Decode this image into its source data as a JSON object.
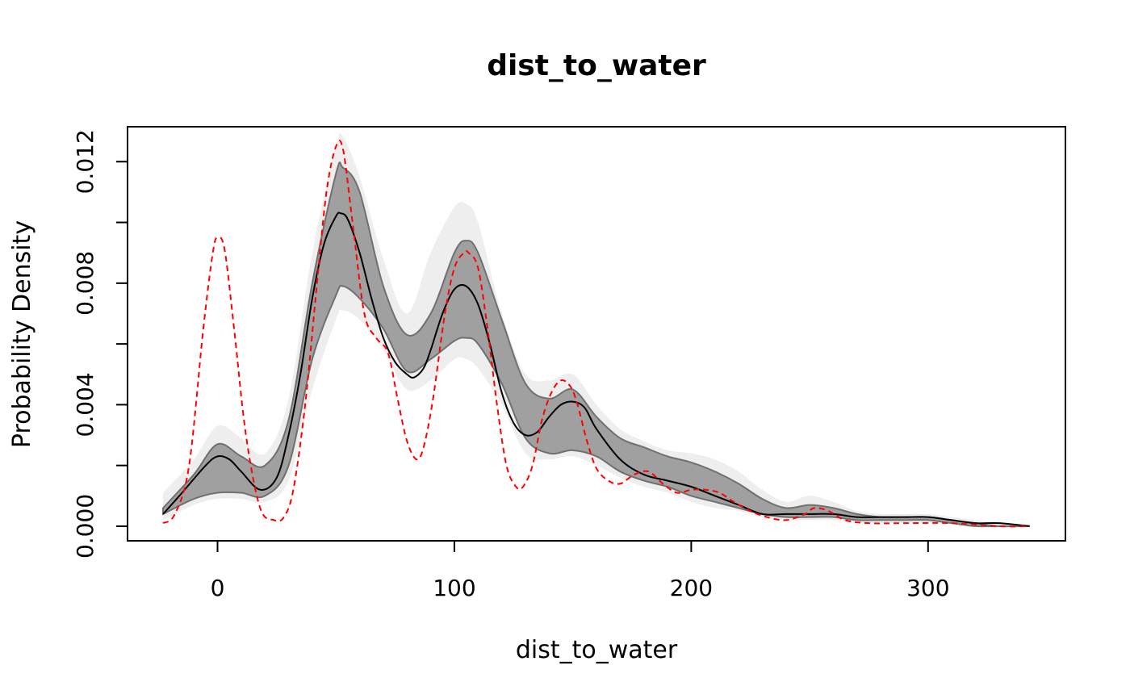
{
  "chart_data": {
    "type": "line",
    "title": "dist_to_water",
    "xlabel": "dist_to_water",
    "ylabel": "Probability Density",
    "xlim": [
      -38,
      358
    ],
    "ylim": [
      -0.00048,
      0.01315
    ],
    "x_ticks": [
      0,
      100,
      200,
      300
    ],
    "x_tick_labels": [
      "0",
      "100",
      "200",
      "300"
    ],
    "y_ticks": [
      0.0,
      0.002,
      0.004,
      0.006,
      0.008,
      0.01,
      0.012
    ],
    "y_tick_labels": [
      "0.000",
      "",
      "0.004",
      "",
      "0.008",
      "",
      "0.012"
    ],
    "grid": false,
    "outer_band": {
      "x": [
        -23,
        -10,
        0,
        10,
        20,
        30,
        40,
        50,
        53,
        60,
        70,
        80,
        90,
        100,
        105,
        110,
        120,
        130,
        140,
        150,
        160,
        170,
        180,
        190,
        200,
        210,
        220,
        230,
        240,
        250,
        260,
        270,
        280,
        290,
        300,
        310,
        320,
        330,
        343
      ],
      "lower": [
        0.0002,
        0.0007,
        0.0009,
        0.0009,
        0.0008,
        0.0015,
        0.0045,
        0.0068,
        0.0071,
        0.0068,
        0.0058,
        0.0045,
        0.0048,
        0.0055,
        0.0055,
        0.0052,
        0.004,
        0.0024,
        0.0022,
        0.0023,
        0.002,
        0.0016,
        0.0013,
        0.0011,
        0.0008,
        0.0006,
        0.0005,
        0.0003,
        0.0002,
        0.0002,
        0.0002,
        0.0001,
        0.0001,
        0.0001,
        0.0001,
        0.0001,
        0.0,
        0.0,
        0.0
      ],
      "upper": [
        0.0011,
        0.0022,
        0.0033,
        0.0029,
        0.0024,
        0.0042,
        0.009,
        0.0125,
        0.0128,
        0.0115,
        0.0088,
        0.007,
        0.009,
        0.0105,
        0.0106,
        0.01,
        0.007,
        0.005,
        0.0048,
        0.005,
        0.004,
        0.0032,
        0.0028,
        0.0025,
        0.0024,
        0.0022,
        0.0018,
        0.0012,
        0.0008,
        0.001,
        0.0008,
        0.0005,
        0.0004,
        0.0004,
        0.0004,
        0.0003,
        0.0002,
        0.0001,
        0.0
      ]
    },
    "inner_band": {
      "x": [
        -23,
        -10,
        0,
        10,
        20,
        30,
        40,
        50,
        53,
        60,
        70,
        80,
        90,
        100,
        105,
        110,
        120,
        130,
        140,
        150,
        160,
        170,
        180,
        190,
        200,
        210,
        220,
        230,
        240,
        250,
        260,
        270,
        280,
        290,
        300,
        310,
        320,
        330,
        343
      ],
      "lower": [
        0.0004,
        0.0009,
        0.0011,
        0.0011,
        0.001,
        0.002,
        0.0055,
        0.0076,
        0.0079,
        0.0075,
        0.0065,
        0.0051,
        0.0055,
        0.0061,
        0.0062,
        0.006,
        0.0047,
        0.0029,
        0.0024,
        0.0025,
        0.0023,
        0.0018,
        0.0015,
        0.0013,
        0.001,
        0.0008,
        0.0006,
        0.0004,
        0.0003,
        0.0003,
        0.0003,
        0.0002,
        0.0002,
        0.0002,
        0.0002,
        0.0001,
        0.0,
        0.0,
        0.0
      ],
      "upper": [
        0.0006,
        0.0017,
        0.0027,
        0.0023,
        0.002,
        0.0035,
        0.008,
        0.0116,
        0.0118,
        0.011,
        0.0079,
        0.0063,
        0.007,
        0.009,
        0.0094,
        0.009,
        0.0068,
        0.0047,
        0.0042,
        0.0045,
        0.0036,
        0.0029,
        0.0026,
        0.0023,
        0.0021,
        0.0018,
        0.0014,
        0.0009,
        0.0006,
        0.0007,
        0.0006,
        0.0004,
        0.0003,
        0.0003,
        0.0003,
        0.0002,
        0.0001,
        0.0,
        0.0
      ]
    },
    "series": [
      {
        "color": "#000000",
        "style": "solid",
        "x": [
          -23,
          -15,
          -5,
          0,
          5,
          10,
          18,
          25,
          30,
          35,
          40,
          45,
          50,
          52,
          55,
          60,
          65,
          70,
          75,
          80,
          83,
          87,
          90,
          95,
          100,
          105,
          110,
          115,
          120,
          125,
          130,
          135,
          140,
          145,
          150,
          155,
          160,
          170,
          180,
          190,
          200,
          210,
          220,
          230,
          240,
          250,
          260,
          270,
          280,
          290,
          300,
          310,
          320,
          330,
          343
        ],
        "y": [
          0.0004,
          0.0011,
          0.002,
          0.0023,
          0.0022,
          0.0018,
          0.0012,
          0.0016,
          0.003,
          0.005,
          0.0075,
          0.0093,
          0.0102,
          0.0103,
          0.0101,
          0.009,
          0.0075,
          0.0062,
          0.0054,
          0.005,
          0.0049,
          0.0052,
          0.0058,
          0.007,
          0.0078,
          0.0079,
          0.0073,
          0.006,
          0.0044,
          0.0034,
          0.003,
          0.0031,
          0.0036,
          0.004,
          0.0041,
          0.0039,
          0.0032,
          0.0022,
          0.0017,
          0.0015,
          0.0013,
          0.001,
          0.0007,
          0.0004,
          0.0004,
          0.0004,
          0.0004,
          0.0003,
          0.0003,
          0.0003,
          0.0003,
          0.0002,
          0.0001,
          0.0001,
          0.0
        ]
      },
      {
        "color": "#ff0000",
        "style": "dashed",
        "x": [
          -23,
          -18,
          -12,
          -6,
          -2,
          0,
          3,
          7,
          12,
          18,
          24,
          28,
          32,
          37,
          42,
          46,
          50,
          53,
          57,
          62,
          67,
          72,
          76,
          80,
          84,
          87,
          91,
          96,
          100,
          104,
          106,
          110,
          114,
          118,
          122,
          126,
          129,
          133,
          137,
          141,
          145,
          149,
          152,
          156,
          160,
          165,
          170,
          176,
          182,
          188,
          194,
          200,
          206,
          212,
          218,
          225,
          232,
          240,
          248,
          252,
          258,
          265,
          275,
          290,
          310,
          330,
          343
        ],
        "y": [
          0.0001,
          0.0004,
          0.002,
          0.0065,
          0.009,
          0.0095,
          0.0091,
          0.0065,
          0.003,
          0.0006,
          0.0002,
          0.0003,
          0.0012,
          0.004,
          0.008,
          0.011,
          0.0125,
          0.0124,
          0.01,
          0.007,
          0.0062,
          0.0057,
          0.0042,
          0.0028,
          0.0022,
          0.0026,
          0.0042,
          0.007,
          0.0085,
          0.009,
          0.009,
          0.0085,
          0.0065,
          0.004,
          0.002,
          0.0013,
          0.0013,
          0.002,
          0.0035,
          0.0044,
          0.0048,
          0.0046,
          0.004,
          0.0028,
          0.0019,
          0.0015,
          0.0014,
          0.0017,
          0.0018,
          0.0014,
          0.0011,
          0.0012,
          0.0012,
          0.0011,
          0.0008,
          0.0005,
          0.0003,
          0.0002,
          0.0004,
          0.0006,
          0.0005,
          0.0002,
          0.0001,
          0.0001,
          0.0001,
          0.0,
          0.0
        ]
      }
    ],
    "colors": {
      "outer_band": "#eeeeee",
      "inner_band": "#a0a0a0",
      "inner_band_edge": "#707070",
      "axis": "#000000"
    }
  }
}
